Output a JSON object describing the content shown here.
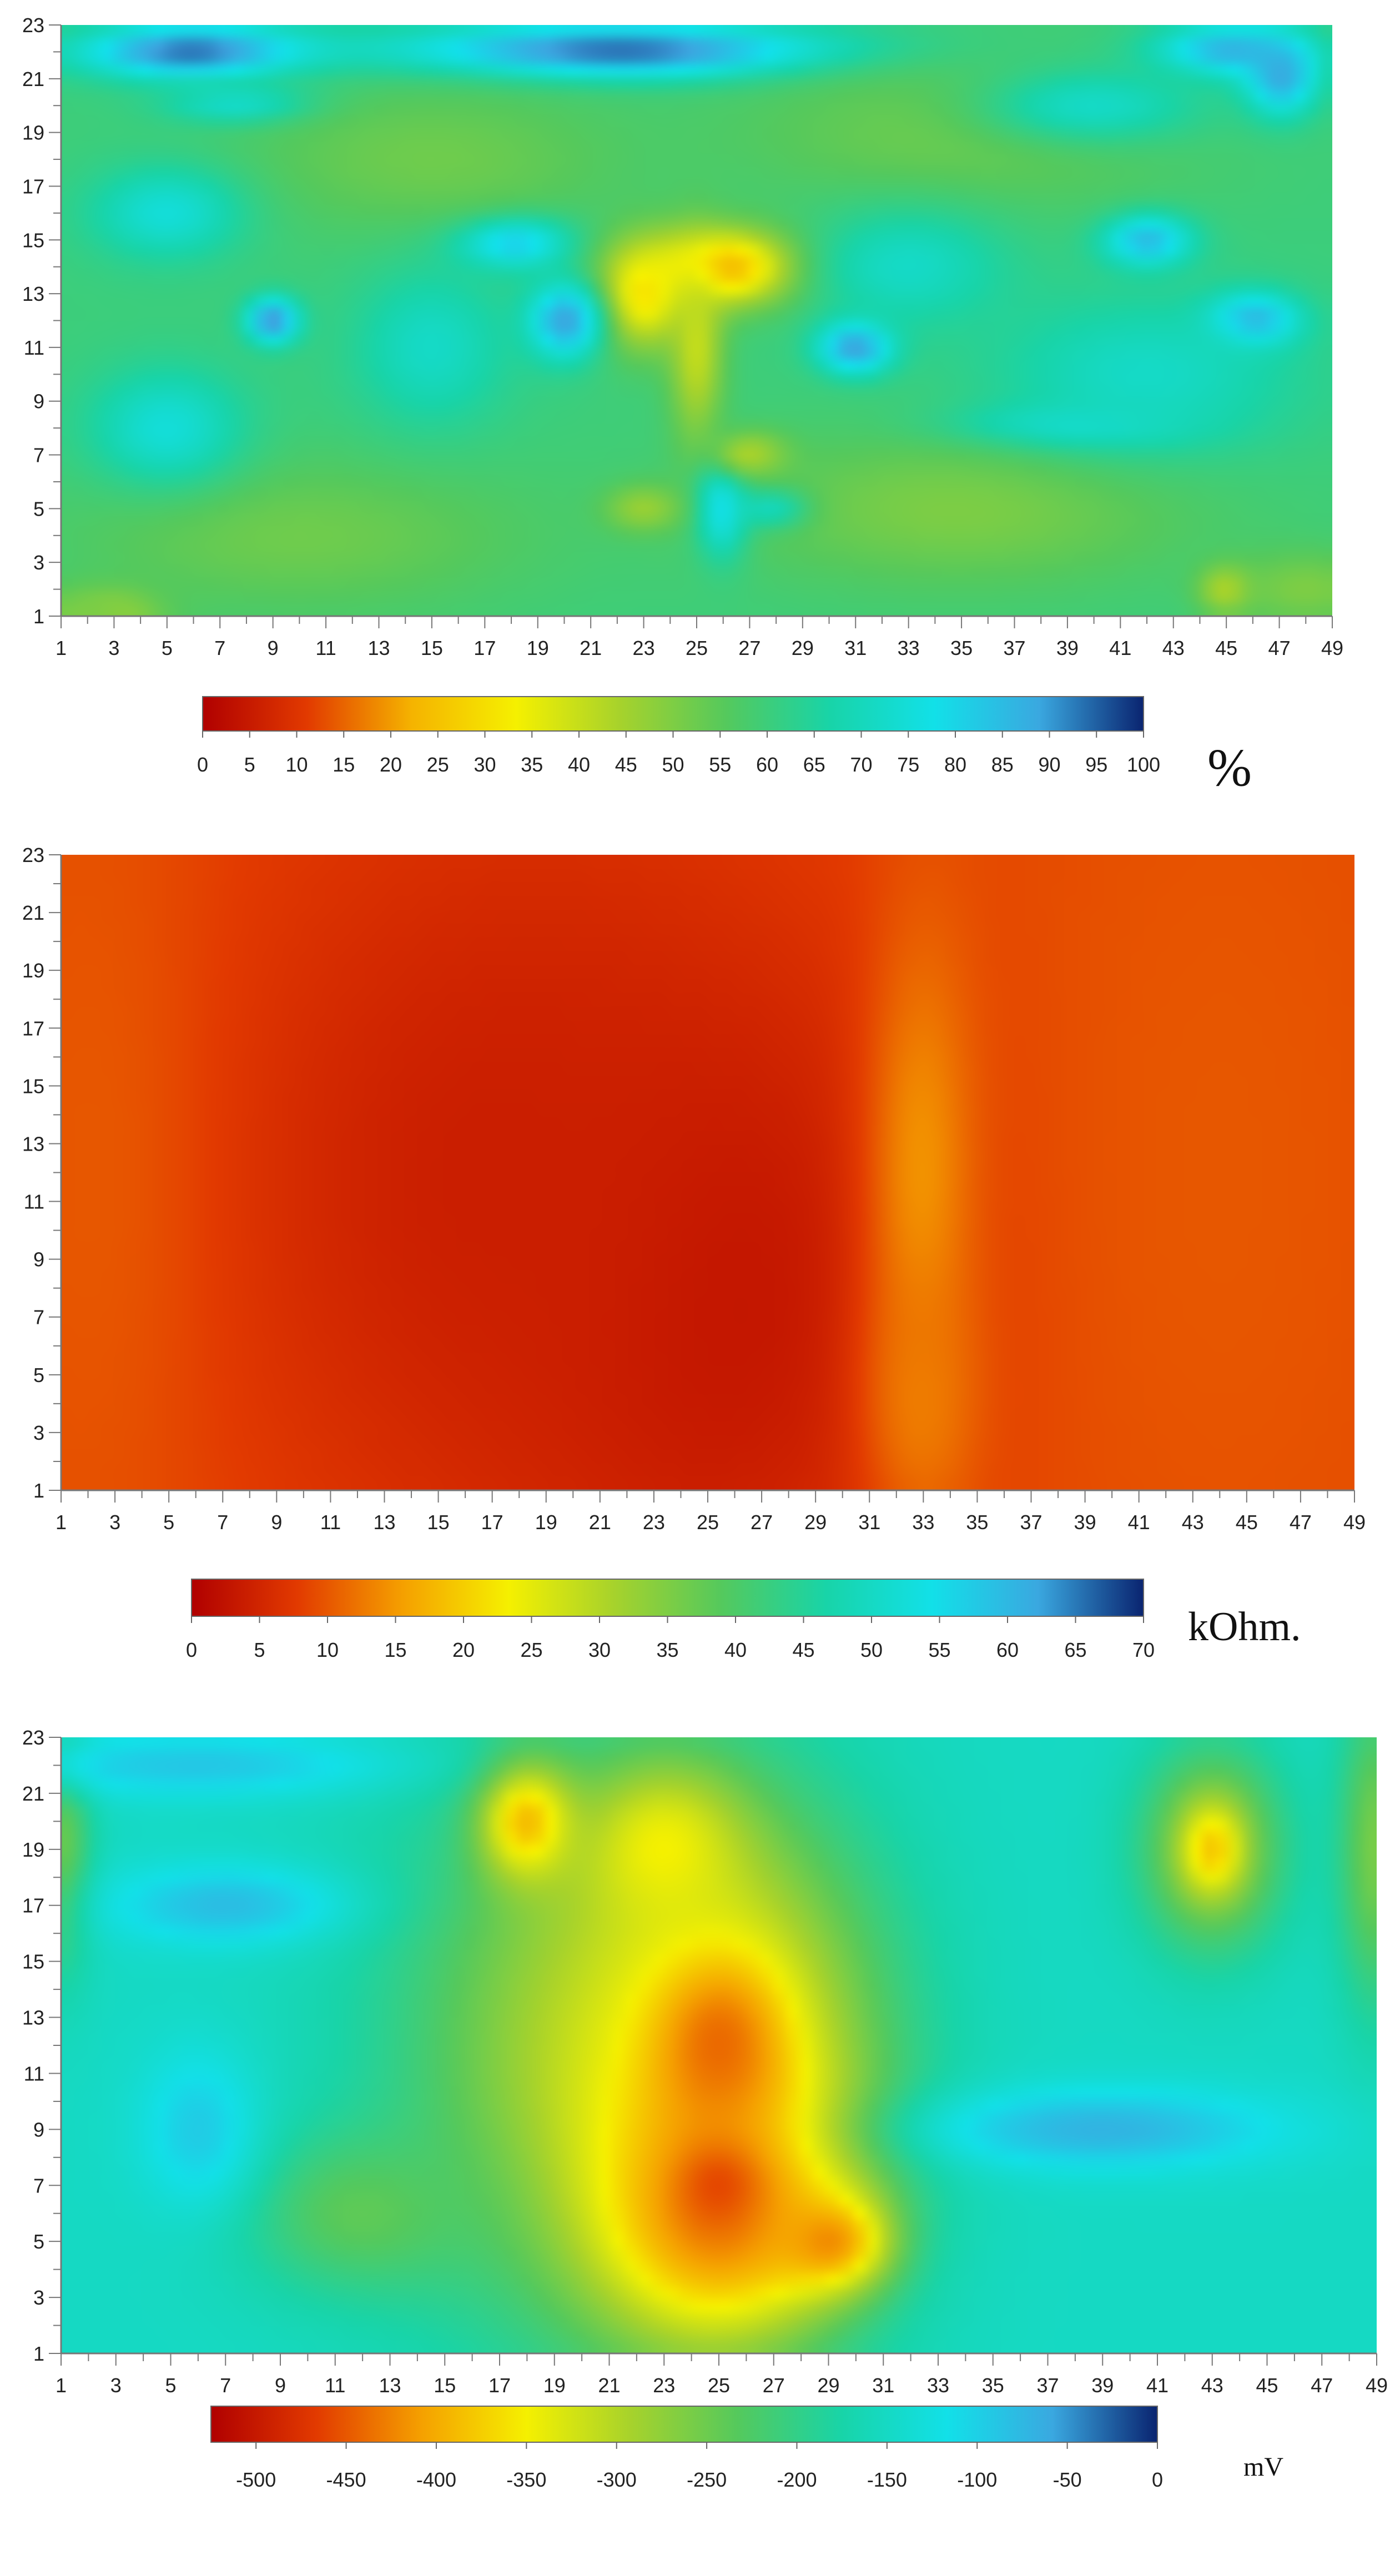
{
  "chart_data": [
    {
      "type": "heatmap",
      "x_ticks": [
        "1",
        "3",
        "5",
        "7",
        "9",
        "11",
        "13",
        "15",
        "17",
        "19",
        "21",
        "23",
        "25",
        "27",
        "29",
        "31",
        "33",
        "35",
        "37",
        "39",
        "41",
        "43",
        "45",
        "47",
        "49"
      ],
      "y_ticks": [
        "1",
        "3",
        "5",
        "7",
        "9",
        "11",
        "13",
        "15",
        "17",
        "19",
        "21",
        "23"
      ],
      "xlim": [
        1,
        49
      ],
      "ylim": [
        1,
        23
      ],
      "colorbar": {
        "ticks": [
          "0",
          "5",
          "10",
          "15",
          "20",
          "25",
          "30",
          "35",
          "40",
          "45",
          "50",
          "55",
          "60",
          "65",
          "70",
          "75",
          "80",
          "85",
          "90",
          "95",
          "100"
        ],
        "min": 0,
        "max": 100,
        "unit": "%",
        "colors": [
          "#b00000",
          "#e23a00",
          "#f5b300",
          "#f5f000",
          "#a6d22c",
          "#55c95c",
          "#18d4a8",
          "#12e0e8",
          "#3aa8e0",
          "#0a2470"
        ]
      },
      "base_value": 60,
      "features": [
        {
          "x": 6,
          "y": 22,
          "value": 95,
          "sx": 3,
          "sy": 0.7
        },
        {
          "x": 22,
          "y": 22,
          "value": 98,
          "sx": 6,
          "sy": 0.7
        },
        {
          "x": 45,
          "y": 22,
          "value": 90,
          "sx": 2,
          "sy": 0.7
        },
        {
          "x": 47,
          "y": 21,
          "value": 92,
          "sx": 1,
          "sy": 1
        },
        {
          "x": 18,
          "y": 15,
          "value": 92,
          "sx": 1.5,
          "sy": 0.7
        },
        {
          "x": 26,
          "y": 14,
          "value": 20,
          "sx": 2,
          "sy": 1
        },
        {
          "x": 23,
          "y": 13,
          "value": 30,
          "sx": 1.2,
          "sy": 1.4
        },
        {
          "x": 25,
          "y": 11,
          "value": 40,
          "sx": 0.7,
          "sy": 2.5
        },
        {
          "x": 20,
          "y": 12,
          "value": 90,
          "sx": 1,
          "sy": 1
        },
        {
          "x": 31,
          "y": 11,
          "value": 92,
          "sx": 1,
          "sy": 0.7
        },
        {
          "x": 46,
          "y": 12,
          "value": 92,
          "sx": 1.2,
          "sy": 0.7
        },
        {
          "x": 42,
          "y": 15,
          "value": 88,
          "sx": 1.2,
          "sy": 0.7
        },
        {
          "x": 9,
          "y": 12,
          "value": 92,
          "sx": 0.7,
          "sy": 0.6
        },
        {
          "x": 26,
          "y": 5,
          "value": 92,
          "sx": 0.7,
          "sy": 1.2
        },
        {
          "x": 28,
          "y": 5,
          "value": 90,
          "sx": 1,
          "sy": 0.5
        },
        {
          "x": 23,
          "y": 5,
          "value": 45,
          "sx": 1,
          "sy": 0.6
        },
        {
          "x": 27,
          "y": 7,
          "value": 42,
          "sx": 1,
          "sy": 0.6
        },
        {
          "x": 39,
          "y": 8,
          "value": 80,
          "sx": 3,
          "sy": 0.6
        },
        {
          "x": 8,
          "y": 20,
          "value": 78,
          "sx": 2,
          "sy": 0.5
        },
        {
          "x": 3,
          "y": 1,
          "value": 40,
          "sx": 1,
          "sy": 0.6
        },
        {
          "x": 45,
          "y": 2,
          "value": 40,
          "sx": 0.7,
          "sy": 0.6
        },
        {
          "x": 2,
          "y": 1,
          "value": 50,
          "sx": 2,
          "sy": 0.8
        },
        {
          "x": 48,
          "y": 2,
          "value": 50,
          "sx": 2,
          "sy": 1
        },
        {
          "x": 35,
          "y": 5,
          "value": 50,
          "sx": 6,
          "sy": 2
        },
        {
          "x": 10,
          "y": 4,
          "value": 52,
          "sx": 6,
          "sy": 2
        },
        {
          "x": 15,
          "y": 18,
          "value": 52,
          "sx": 5,
          "sy": 2
        },
        {
          "x": 35,
          "y": 19,
          "value": 52,
          "sx": 6,
          "sy": 2
        },
        {
          "x": 5,
          "y": 8,
          "value": 75,
          "sx": 2,
          "sy": 1.5
        },
        {
          "x": 15,
          "y": 11,
          "value": 72,
          "sx": 2,
          "sy": 2
        },
        {
          "x": 42,
          "y": 10,
          "value": 72,
          "sx": 4,
          "sy": 2
        },
        {
          "x": 33,
          "y": 14,
          "value": 72,
          "sx": 2.5,
          "sy": 1.5
        },
        {
          "x": 5,
          "y": 16,
          "value": 75,
          "sx": 2,
          "sy": 1.2
        },
        {
          "x": 40,
          "y": 20,
          "value": 72,
          "sx": 3,
          "sy": 1
        }
      ]
    },
    {
      "type": "heatmap",
      "x_ticks": [
        "1",
        "3",
        "5",
        "7",
        "9",
        "11",
        "13",
        "15",
        "17",
        "19",
        "21",
        "23",
        "25",
        "27",
        "29",
        "31",
        "33",
        "35",
        "37",
        "39",
        "41",
        "43",
        "45",
        "47",
        "49"
      ],
      "y_ticks": [
        "1",
        "3",
        "5",
        "7",
        "9",
        "11",
        "13",
        "15",
        "17",
        "19",
        "21",
        "23"
      ],
      "xlim": [
        1,
        49
      ],
      "ylim": [
        1,
        23
      ],
      "colorbar": {
        "ticks": [
          "0",
          "5",
          "10",
          "15",
          "20",
          "25",
          "30",
          "35",
          "40",
          "45",
          "50",
          "55",
          "60",
          "65",
          "70"
        ],
        "min": 0,
        "max": 70,
        "unit": "kOhm.",
        "colors": [
          "#b00000",
          "#e23a00",
          "#f5a000",
          "#f5f000",
          "#a6d22c",
          "#55c95c",
          "#18d4a8",
          "#12e0e8",
          "#3aa8e0",
          "#0a2470"
        ]
      },
      "base_value": 9,
      "features": [
        {
          "x": 25,
          "y": 8,
          "value": 2,
          "sx": 6,
          "sy": 8
        },
        {
          "x": 17,
          "y": 12,
          "value": 4,
          "sx": 8,
          "sy": 10
        },
        {
          "x": 2,
          "y": 12,
          "value": 10,
          "sx": 3,
          "sy": 12
        },
        {
          "x": 33,
          "y": 12,
          "value": 15,
          "sx": 1.5,
          "sy": 6
        },
        {
          "x": 33,
          "y": 4,
          "value": 13,
          "sx": 1.5,
          "sy": 3
        },
        {
          "x": 44,
          "y": 12,
          "value": 10,
          "sx": 5,
          "sy": 12
        }
      ]
    },
    {
      "type": "heatmap",
      "x_ticks": [
        "1",
        "3",
        "5",
        "7",
        "9",
        "11",
        "13",
        "15",
        "17",
        "19",
        "21",
        "23",
        "25",
        "27",
        "29",
        "31",
        "33",
        "35",
        "37",
        "39",
        "41",
        "43",
        "45",
        "47",
        "49"
      ],
      "y_ticks": [
        "1",
        "3",
        "5",
        "7",
        "9",
        "11",
        "13",
        "15",
        "17",
        "19",
        "21",
        "23"
      ],
      "xlim": [
        1,
        49
      ],
      "ylim": [
        1,
        23
      ],
      "colorbar": {
        "ticks": [
          "-500",
          "-450",
          "-400",
          "-350",
          "-300",
          "-250",
          "-200",
          "-150",
          "-100",
          "-50",
          "0"
        ],
        "min": -525,
        "max": 0,
        "unit": "mV",
        "colors": [
          "#b00000",
          "#e23a00",
          "#f5a000",
          "#f5f000",
          "#a6d22c",
          "#55c95c",
          "#18d4a8",
          "#12e0e8",
          "#3aa8e0",
          "#0a2470"
        ]
      },
      "base_value": -150,
      "features": [
        {
          "x": 20,
          "y": 12,
          "value": -270,
          "sx": 5,
          "sy": 7
        },
        {
          "x": 25,
          "y": 11,
          "value": -380,
          "sx": 4,
          "sy": 6
        },
        {
          "x": 25,
          "y": 6,
          "value": -430,
          "sx": 3,
          "sy": 3
        },
        {
          "x": 25,
          "y": 12,
          "value": -440,
          "sx": 1.5,
          "sy": 2
        },
        {
          "x": 25,
          "y": 7,
          "value": -460,
          "sx": 1,
          "sy": 1
        },
        {
          "x": 29,
          "y": 5,
          "value": -420,
          "sx": 1.5,
          "sy": 1.2
        },
        {
          "x": 18,
          "y": 20,
          "value": -390,
          "sx": 1.2,
          "sy": 1.5
        },
        {
          "x": 23,
          "y": 19,
          "value": -350,
          "sx": 2,
          "sy": 2
        },
        {
          "x": 12,
          "y": 6,
          "value": -240,
          "sx": 3,
          "sy": 2
        },
        {
          "x": 43,
          "y": 19,
          "value": -300,
          "sx": 1.8,
          "sy": 2.5
        },
        {
          "x": 43,
          "y": 19,
          "value": -380,
          "sx": 0.7,
          "sy": 1
        },
        {
          "x": 49,
          "y": 19,
          "value": -260,
          "sx": 1,
          "sy": 4
        },
        {
          "x": 1,
          "y": 19,
          "value": -250,
          "sx": 0.8,
          "sy": 3
        },
        {
          "x": 39,
          "y": 9,
          "value": -70,
          "sx": 4.5,
          "sy": 1
        },
        {
          "x": 7,
          "y": 17,
          "value": -80,
          "sx": 3,
          "sy": 1
        },
        {
          "x": 6,
          "y": 22,
          "value": -90,
          "sx": 5,
          "sy": 0.8
        },
        {
          "x": 6,
          "y": 9,
          "value": -95,
          "sx": 1.5,
          "sy": 2
        }
      ]
    }
  ]
}
